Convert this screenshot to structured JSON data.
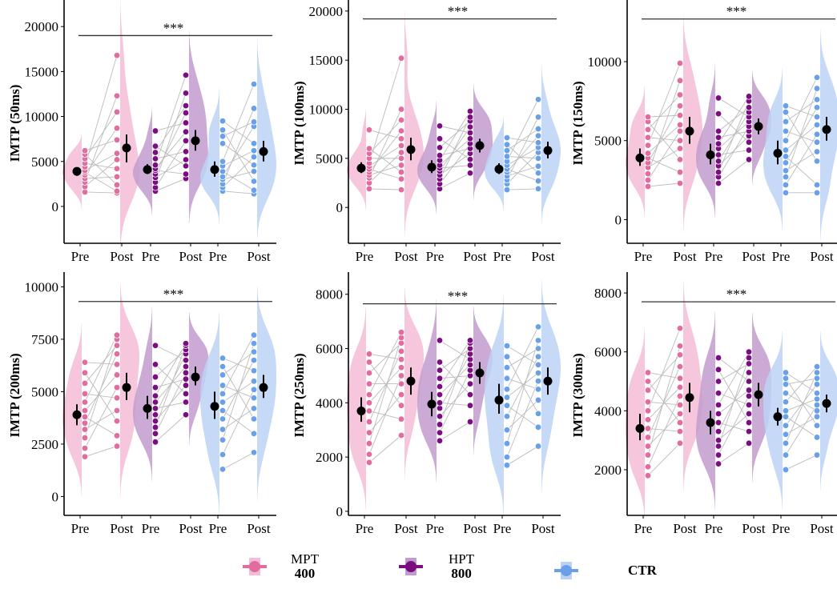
{
  "chart_data": [
    {
      "type": "violin-paired",
      "ylabel": "IMTP (50ms)",
      "ylim": [
        -4100,
        22600
      ],
      "yticks": [
        0,
        5000,
        10000,
        15000,
        20000
      ],
      "sig_label": "***",
      "sig_y": 19000,
      "xticks": [
        "Pre",
        "Post",
        "Pre",
        "Post",
        "Pre",
        "Post"
      ],
      "groups": [
        {
          "name": "MPT400",
          "pre": [
            1600,
            2200,
            2700,
            3100,
            3500,
            3800,
            4000,
            4400,
            4800,
            5300,
            5800,
            6200
          ],
          "post": [
            1500,
            1700,
            2400,
            3300,
            4200,
            5200,
            5900,
            7400,
            8700,
            10500,
            12300,
            16800
          ],
          "pre_mean": 3900,
          "pre_ci": [
            3400,
            4300
          ],
          "post_mean": 6500,
          "post_ci": [
            4900,
            8000
          ]
        },
        {
          "name": "HPT800",
          "pre": [
            1700,
            2100,
            2700,
            3200,
            3600,
            4000,
            4200,
            4600,
            5300,
            6000,
            6700,
            8400
          ],
          "post": [
            3100,
            3600,
            4500,
            5200,
            6100,
            7300,
            8300,
            9300,
            10400,
            11200,
            12600,
            14600
          ],
          "pre_mean": 4100,
          "pre_ci": [
            3600,
            4700
          ],
          "post_mean": 7300,
          "post_ci": [
            6200,
            8500
          ]
        },
        {
          "name": "CTR",
          "pre": [
            1700,
            2100,
            2500,
            3000,
            3300,
            3900,
            4500,
            5000,
            7000,
            7800,
            8500,
            9500
          ],
          "post": [
            1400,
            1800,
            2800,
            3900,
            4600,
            5500,
            6200,
            7000,
            8900,
            9400,
            10900,
            13600
          ],
          "pre_mean": 4100,
          "pre_ci": [
            3300,
            5000
          ],
          "post_mean": 6100,
          "post_ci": [
            5000,
            7300
          ]
        }
      ]
    },
    {
      "type": "violin-paired",
      "ylabel": "IMTP (100ms)",
      "ylim": [
        -3650,
        20800
      ],
      "yticks": [
        0,
        5000,
        10000,
        15000,
        20000
      ],
      "sig_label": "***",
      "sig_y": 19200,
      "xticks": [
        "Pre",
        "Post",
        "Pre",
        "Post",
        "Pre",
        "Post"
      ],
      "groups": [
        {
          "name": "MPT400",
          "pre": [
            1900,
            2500,
            3000,
            3300,
            3600,
            3900,
            4200,
            4500,
            5000,
            5500,
            6000,
            7900
          ],
          "post": [
            1800,
            2900,
            3600,
            4300,
            5000,
            5600,
            6300,
            7000,
            7800,
            8900,
            10000,
            15200
          ],
          "pre_mean": 4000,
          "pre_ci": [
            3500,
            4600
          ],
          "post_mean": 5900,
          "post_ci": [
            4800,
            7100
          ]
        },
        {
          "name": "HPT800",
          "pre": [
            1900,
            2400,
            2900,
            3300,
            3700,
            4000,
            4300,
            4800,
            5300,
            6100,
            7000,
            8300
          ],
          "post": [
            3500,
            4300,
            4900,
            5500,
            6000,
            6500,
            7000,
            7600,
            8200,
            8800,
            9200,
            9800
          ],
          "pre_mean": 4100,
          "pre_ci": [
            3500,
            4800
          ],
          "post_mean": 6300,
          "post_ci": [
            5600,
            7000
          ]
        },
        {
          "name": "CTR",
          "pre": [
            1800,
            2400,
            2800,
            3200,
            3600,
            3900,
            4300,
            4700,
            5200,
            5800,
            6400,
            7100
          ],
          "post": [
            1900,
            2700,
            3500,
            4200,
            5000,
            5600,
            6100,
            6600,
            7300,
            8000,
            9200,
            11000
          ],
          "pre_mean": 3900,
          "pre_ci": [
            3400,
            4500
          ],
          "post_mean": 5800,
          "post_ci": [
            5000,
            6700
          ]
        }
      ]
    },
    {
      "type": "violin-paired",
      "ylabel": "IMTP (150ms)",
      "ylim": [
        -1500,
        13700
      ],
      "yticks": [
        0,
        5000,
        10000
      ],
      "sig_label": "***",
      "sig_y": 12700,
      "xticks": [
        "Pre",
        "Post",
        "Pre",
        "Post",
        "Pre",
        "Post"
      ],
      "groups": [
        {
          "name": "MPT400",
          "pre": [
            2100,
            2500,
            2900,
            3300,
            3600,
            3900,
            4200,
            4700,
            5200,
            5700,
            6200,
            6500
          ],
          "post": [
            2300,
            3000,
            3800,
            4500,
            5000,
            5600,
            6000,
            6600,
            7200,
            7900,
            8800,
            9900
          ],
          "pre_mean": 3900,
          "pre_ci": [
            3400,
            4500
          ],
          "post_mean": 5600,
          "post_ci": [
            4800,
            6500
          ]
        },
        {
          "name": "HPT800",
          "pre": [
            2300,
            2700,
            3000,
            3400,
            3700,
            4100,
            4500,
            4800,
            5200,
            5600,
            6700,
            7700
          ],
          "post": [
            3800,
            4400,
            4900,
            5300,
            5600,
            5900,
            6200,
            6500,
            6800,
            7100,
            7500,
            7800
          ],
          "pre_mean": 4100,
          "pre_ci": [
            3500,
            4800
          ],
          "post_mean": 5900,
          "post_ci": [
            5400,
            6400
          ]
        },
        {
          "name": "CTR",
          "pre": [
            1700,
            2200,
            2700,
            3100,
            3600,
            4000,
            4400,
            5000,
            5600,
            6200,
            6800,
            7200
          ],
          "post": [
            1700,
            2200,
            3700,
            4300,
            4900,
            5400,
            6000,
            6500,
            7100,
            7600,
            8300,
            9000
          ],
          "pre_mean": 4200,
          "pre_ci": [
            3500,
            5000
          ],
          "post_mean": 5700,
          "post_ci": [
            5000,
            6500
          ]
        }
      ]
    },
    {
      "type": "violin-paired",
      "ylabel": "IMTP (200ms)",
      "ylim": [
        -900,
        10550
      ],
      "yticks": [
        0,
        2500,
        5000,
        7500,
        10000
      ],
      "sig_label": "***",
      "sig_y": 9300,
      "xticks": [
        "Pre",
        "Post",
        "Pre",
        "Post",
        "Pre",
        "Post"
      ],
      "groups": [
        {
          "name": "MPT400",
          "pre": [
            1900,
            2300,
            2800,
            3200,
            3500,
            3800,
            4100,
            4500,
            4900,
            5400,
            5900,
            6400
          ],
          "post": [
            2400,
            2900,
            3600,
            4100,
            4700,
            5200,
            5800,
            6300,
            6800,
            7200,
            7500,
            7700
          ],
          "pre_mean": 3900,
          "pre_ci": [
            3400,
            4400
          ],
          "post_mean": 5200,
          "post_ci": [
            4600,
            5900
          ]
        },
        {
          "name": "HPT800",
          "pre": [
            2600,
            3000,
            3300,
            3600,
            3900,
            4200,
            4500,
            4800,
            5200,
            5700,
            6300,
            7200
          ],
          "post": [
            3900,
            4500,
            4900,
            5300,
            5600,
            5900,
            6200,
            6500,
            6800,
            7000,
            7200,
            7300
          ],
          "pre_mean": 4200,
          "pre_ci": [
            3700,
            4800
          ],
          "post_mean": 5700,
          "post_ci": [
            5300,
            6200
          ]
        },
        {
          "name": "CTR",
          "pre": [
            1300,
            2000,
            2700,
            3200,
            3700,
            4100,
            4500,
            4900,
            5300,
            5800,
            6200,
            6600
          ],
          "post": [
            2100,
            3000,
            3700,
            4200,
            4700,
            5100,
            5500,
            6000,
            6500,
            6900,
            7300,
            7700
          ],
          "pre_mean": 4300,
          "pre_ci": [
            3700,
            5000
          ],
          "post_mean": 5200,
          "post_ci": [
            4700,
            5800
          ]
        }
      ]
    },
    {
      "type": "violin-paired",
      "ylabel": "IMTP (250ms)",
      "ylim": [
        -150,
        8700
      ],
      "yticks": [
        0,
        2000,
        4000,
        6000,
        8000
      ],
      "sig_label": "***",
      "sig_y": 7650,
      "xticks": [
        "Pre",
        "Post",
        "Pre",
        "Post",
        "Pre",
        "Post"
      ],
      "groups": [
        {
          "name": "MPT400",
          "pre": [
            1800,
            2100,
            2500,
            2900,
            3300,
            3700,
            4000,
            4300,
            4700,
            5100,
            5500,
            5800
          ],
          "post": [
            2800,
            3400,
            3900,
            4300,
            4700,
            5000,
            5300,
            5600,
            5900,
            6200,
            6400,
            6600
          ],
          "pre_mean": 3700,
          "pre_ci": [
            3300,
            4200
          ],
          "post_mean": 4800,
          "post_ci": [
            4300,
            5300
          ]
        },
        {
          "name": "HPT800",
          "pre": [
            2600,
            2900,
            3200,
            3500,
            3800,
            4000,
            4300,
            4600,
            4900,
            5200,
            5500,
            6300
          ],
          "post": [
            3300,
            3900,
            4300,
            4700,
            5000,
            5200,
            5400,
            5600,
            5800,
            6000,
            6200,
            6300
          ],
          "pre_mean": 3950,
          "pre_ci": [
            3500,
            4400
          ],
          "post_mean": 5100,
          "post_ci": [
            4700,
            5500
          ]
        },
        {
          "name": "CTR",
          "pre": [
            1700,
            2000,
            2500,
            3000,
            3500,
            3900,
            4200,
            4500,
            4900,
            5300,
            5700,
            6100
          ],
          "post": [
            2400,
            3100,
            3600,
            4100,
            4500,
            4800,
            5100,
            5400,
            5700,
            6000,
            6300,
            6800
          ],
          "pre_mean": 4100,
          "pre_ci": [
            3600,
            4700
          ],
          "post_mean": 4800,
          "post_ci": [
            4300,
            5300
          ]
        }
      ]
    },
    {
      "type": "violin-paired",
      "ylabel": "IMTP (300ms)",
      "ylim": [
        450,
        8600
      ],
      "yticks": [
        2000,
        4000,
        6000,
        8000
      ],
      "sig_label": "***",
      "sig_y": 7700,
      "xticks": [
        "Pre",
        "Post",
        "Pre",
        "Post",
        "Pre",
        "Post"
      ],
      "groups": [
        {
          "name": "MPT400",
          "pre": [
            1800,
            2100,
            2500,
            2800,
            3100,
            3400,
            3700,
            4000,
            4300,
            4700,
            5000,
            5300
          ],
          "post": [
            2900,
            3300,
            3600,
            3900,
            4200,
            4500,
            4800,
            5100,
            5500,
            5900,
            6200,
            6800
          ],
          "pre_mean": 3400,
          "pre_ci": [
            3000,
            3900
          ],
          "post_mean": 4450,
          "post_ci": [
            3950,
            4950
          ]
        },
        {
          "name": "HPT800",
          "pre": [
            2200,
            2500,
            2800,
            3000,
            3300,
            3600,
            3900,
            4200,
            4600,
            5000,
            5400,
            5800
          ],
          "post": [
            2900,
            3300,
            3600,
            3900,
            4200,
            4500,
            4700,
            5000,
            5300,
            5600,
            5800,
            6000
          ],
          "pre_mean": 3600,
          "pre_ci": [
            3200,
            4000
          ],
          "post_mean": 4550,
          "post_ci": [
            4150,
            4950
          ]
        },
        {
          "name": "CTR",
          "pre": [
            2000,
            2500,
            2900,
            3200,
            3500,
            3800,
            4000,
            4300,
            4600,
            4900,
            5100,
            5300
          ],
          "post": [
            2500,
            3100,
            3500,
            3800,
            4000,
            4200,
            4400,
            4600,
            4900,
            5100,
            5300,
            5500
          ],
          "pre_mean": 3800,
          "pre_ci": [
            3500,
            4100
          ],
          "post_mean": 4250,
          "post_ci": [
            3950,
            4550
          ]
        }
      ]
    }
  ],
  "legend": [
    {
      "label": "MPT",
      "sub": "400",
      "point": "#e06ca0",
      "violin": "#f4bcd6"
    },
    {
      "label": "HPT",
      "sub": "800",
      "point": "#7a0d80",
      "violin": "#c29ccf"
    },
    {
      "label": "CTR",
      "sub": "",
      "point": "#6aa0e8",
      "violin": "#bcd2f4"
    }
  ]
}
